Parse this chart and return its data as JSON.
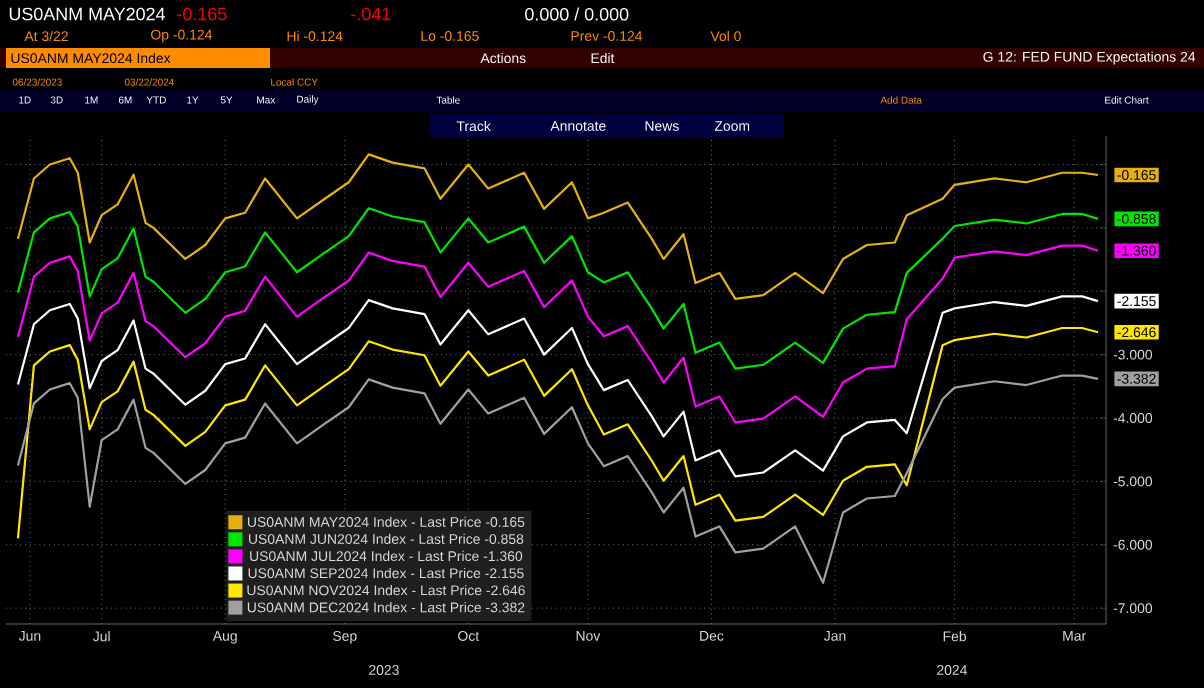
{
  "chart_data": {
    "type": "line",
    "title": "G 12: FED FUND Expectations 24",
    "annotations": [
      "US0ANM MAY2024",
      "-0.165",
      "-.041",
      "0.000 / 0.000",
      "At 3/22",
      "Op -0.124",
      "Hi -0.124",
      "Lo -0.165",
      "Prev -0.124",
      "Vol 0",
      "US0ANM MAY2024 Index",
      "Actions",
      "Edit",
      "06/23/2023",
      "03/22/2024",
      "Local CCY",
      "1D",
      "3D",
      "1M",
      "6M",
      "YTD",
      "1Y",
      "5Y",
      "Max",
      "Daily",
      "Table",
      "Add Data",
      "Edit Chart",
      "Track",
      "Annotate",
      "News",
      "Zoom",
      "2023",
      "2024"
    ],
    "x": [
      "2023-06-25",
      "2023-06-29",
      "2023-07-03",
      "2023-07-08",
      "2023-07-10",
      "2023-07-13",
      "2023-07-16",
      "2023-07-20",
      "2023-07-24",
      "2023-07-27",
      "2023-07-29",
      "2023-08-06",
      "2023-08-11",
      "2023-08-16",
      "2023-08-21",
      "2023-08-26",
      "2023-09-03",
      "2023-09-10",
      "2023-09-16",
      "2023-09-21",
      "2023-09-27",
      "2023-10-05",
      "2023-10-09",
      "2023-10-16",
      "2023-10-21",
      "2023-10-30",
      "2023-11-04",
      "2023-11-11",
      "2023-11-15",
      "2023-11-19",
      "2023-11-25",
      "2023-12-01",
      "2023-12-04",
      "2023-12-09",
      "2023-12-12",
      "2023-12-18",
      "2023-12-22",
      "2023-12-29",
      "2024-01-06",
      "2024-01-13",
      "2024-01-18",
      "2024-01-24",
      "2024-01-31",
      "2024-02-03",
      "2024-02-12",
      "2024-02-15",
      "2024-02-25",
      "2024-03-04",
      "2024-03-13",
      "2024-03-18",
      "2024-03-22"
    ],
    "series": [
      {
        "name": "US0ANM MAY2024 Index - Last Price -0.165",
        "color": "#e6b012",
        "values": [
          -1.17,
          -0.22,
          0,
          0.1,
          -0.13,
          -1.23,
          -0.8,
          -0.63,
          -0.16,
          -0.92,
          -1.0,
          -1.49,
          -1.27,
          -0.85,
          -0.76,
          -0.22,
          -0.85,
          -0.54,
          -0.28,
          0.16,
          0.03,
          -0.06,
          -0.54,
          0,
          -0.38,
          -0.13,
          -0.7,
          -0.28,
          -0.85,
          -0.76,
          -0.6,
          -1.17,
          -1.49,
          -1.1,
          -1.87,
          -1.71,
          -2.12,
          -2.06,
          -1.71,
          -2.03,
          -1.49,
          -1.27,
          -1.23,
          -0.8,
          -0.54,
          -0.32,
          -0.22,
          -0.28,
          -0.13,
          -0.13,
          -0.165
        ],
        "value_labels": [
          null,
          null,
          null,
          null,
          null,
          null,
          null,
          null,
          null,
          null,
          null,
          null,
          null,
          null,
          null,
          null,
          null,
          null,
          null,
          null,
          null,
          null,
          null,
          null,
          null,
          null,
          null,
          null,
          null,
          null,
          null,
          null,
          null,
          null,
          null,
          null,
          null,
          null,
          null,
          null,
          null,
          null,
          null,
          null,
          null,
          null,
          null,
          null,
          null,
          null,
          "-0.165"
        ]
      },
      {
        "name": "US0ANM JUN2024 Index - Last Price -0.858",
        "color": "#00e600",
        "values": [
          -2.02,
          -1.07,
          -0.85,
          -0.75,
          -0.98,
          -2.08,
          -1.65,
          -1.48,
          -1.01,
          -1.77,
          -1.85,
          -2.34,
          -2.12,
          -1.7,
          -1.61,
          -1.07,
          -1.7,
          -1.39,
          -1.13,
          -0.69,
          -0.82,
          -0.91,
          -1.39,
          -0.85,
          -1.23,
          -0.98,
          -1.55,
          -1.13,
          -1.7,
          -1.86,
          -1.7,
          -2.27,
          -2.59,
          -2.2,
          -2.97,
          -2.81,
          -3.22,
          -3.16,
          -2.81,
          -3.13,
          -2.59,
          -2.37,
          -2.33,
          -1.71,
          -1.17,
          -0.97,
          -0.87,
          -0.93,
          -0.78,
          -0.78,
          -0.858
        ],
        "value_labels": [
          null,
          null,
          null,
          null,
          null,
          null,
          null,
          null,
          null,
          null,
          null,
          null,
          null,
          null,
          null,
          null,
          null,
          null,
          null,
          null,
          null,
          null,
          null,
          null,
          null,
          null,
          null,
          null,
          null,
          null,
          null,
          null,
          null,
          null,
          null,
          null,
          null,
          null,
          null,
          null,
          null,
          null,
          null,
          null,
          null,
          null,
          null,
          null,
          null,
          null,
          "-0.858"
        ]
      },
      {
        "name": "US0ANM JUL2024 Index - Last Price -1.360",
        "color": "#ff00ff",
        "values": [
          -2.72,
          -1.77,
          -1.55,
          -1.45,
          -1.68,
          -2.78,
          -2.35,
          -2.18,
          -1.71,
          -2.47,
          -2.55,
          -3.04,
          -2.82,
          -2.4,
          -2.31,
          -1.77,
          -2.4,
          -2.09,
          -1.83,
          -1.39,
          -1.52,
          -1.61,
          -2.09,
          -1.55,
          -1.93,
          -1.68,
          -2.25,
          -1.83,
          -2.4,
          -2.71,
          -2.55,
          -3.12,
          -3.44,
          -3.05,
          -3.82,
          -3.66,
          -4.07,
          -4.01,
          -3.66,
          -3.98,
          -3.44,
          -3.22,
          -3.18,
          -2.44,
          -1.8,
          -1.47,
          -1.37,
          -1.43,
          -1.28,
          -1.28,
          -1.36
        ],
        "value_labels": [
          null,
          null,
          null,
          null,
          null,
          null,
          null,
          null,
          null,
          null,
          null,
          null,
          null,
          null,
          null,
          null,
          null,
          null,
          null,
          null,
          null,
          null,
          null,
          null,
          null,
          null,
          null,
          null,
          null,
          null,
          null,
          null,
          null,
          null,
          null,
          null,
          null,
          null,
          null,
          null,
          null,
          null,
          null,
          null,
          null,
          null,
          null,
          null,
          null,
          null,
          "-1.360"
        ]
      },
      {
        "name": "US0ANM SEP2024 Index - Last Price -2.155",
        "color": "#ffffff",
        "values": [
          -3.47,
          -2.52,
          -2.3,
          -2.2,
          -2.43,
          -3.53,
          -3.1,
          -2.93,
          -2.46,
          -3.22,
          -3.3,
          -3.79,
          -3.57,
          -3.15,
          -3.06,
          -2.52,
          -3.15,
          -2.84,
          -2.58,
          -2.14,
          -2.27,
          -2.36,
          -2.84,
          -2.3,
          -2.68,
          -2.43,
          -3.0,
          -2.58,
          -3.15,
          -3.56,
          -3.4,
          -3.97,
          -4.29,
          -3.9,
          -4.67,
          -4.51,
          -4.92,
          -4.86,
          -4.51,
          -4.83,
          -4.29,
          -4.07,
          -4.03,
          -4.24,
          -2.34,
          -2.27,
          -2.17,
          -2.23,
          -2.08,
          -2.08,
          -2.155
        ],
        "value_labels": [
          null,
          null,
          null,
          null,
          null,
          null,
          null,
          null,
          null,
          null,
          null,
          null,
          null,
          null,
          null,
          null,
          null,
          null,
          null,
          null,
          null,
          null,
          null,
          null,
          null,
          null,
          null,
          null,
          null,
          null,
          null,
          null,
          null,
          null,
          null,
          null,
          null,
          null,
          null,
          null,
          null,
          null,
          null,
          null,
          null,
          null,
          null,
          null,
          null,
          null,
          "-2.155"
        ]
      },
      {
        "name": "US0ANM NOV2024 Index - Last Price -2.646",
        "color": "#ffe600",
        "values": [
          -5.9,
          -3.17,
          -2.95,
          -2.85,
          -3.08,
          -4.18,
          -3.75,
          -3.58,
          -3.11,
          -3.87,
          -3.95,
          -4.44,
          -4.22,
          -3.8,
          -3.71,
          -3.17,
          -3.8,
          -3.49,
          -3.23,
          -2.79,
          -2.92,
          -3.01,
          -3.49,
          -2.95,
          -3.33,
          -3.08,
          -3.65,
          -3.23,
          -3.8,
          -4.26,
          -4.1,
          -4.67,
          -4.99,
          -4.6,
          -5.37,
          -5.21,
          -5.62,
          -5.56,
          -5.21,
          -5.53,
          -4.99,
          -4.77,
          -4.73,
          -5.06,
          -2.85,
          -2.77,
          -2.67,
          -2.73,
          -2.58,
          -2.58,
          -2.646
        ],
        "value_labels": [
          null,
          null,
          null,
          null,
          null,
          null,
          null,
          null,
          null,
          null,
          null,
          null,
          null,
          null,
          null,
          null,
          null,
          null,
          null,
          null,
          null,
          null,
          null,
          null,
          null,
          null,
          null,
          null,
          null,
          null,
          null,
          null,
          null,
          null,
          null,
          null,
          null,
          null,
          null,
          null,
          null,
          null,
          null,
          null,
          null,
          null,
          null,
          null,
          null,
          null,
          "-2.646"
        ]
      },
      {
        "name": "US0ANM DEC2024 Index - Last Price -3.382",
        "color": "#a0a0a0",
        "values": [
          -4.75,
          -3.77,
          -3.55,
          -3.45,
          -3.68,
          -5.4,
          -4.35,
          -4.18,
          -3.71,
          -4.47,
          -4.55,
          -5.04,
          -4.82,
          -4.4,
          -4.31,
          -3.77,
          -4.4,
          -4.09,
          -3.83,
          -3.39,
          -3.52,
          -3.61,
          -4.09,
          -3.55,
          -3.93,
          -3.68,
          -4.25,
          -3.83,
          -4.4,
          -4.76,
          -4.6,
          -5.17,
          -5.49,
          -5.1,
          -5.87,
          -5.71,
          -6.12,
          -6.06,
          -5.71,
          -6.6,
          -5.49,
          -5.27,
          -5.23,
          -4.87,
          -3.7,
          -3.52,
          -3.42,
          -3.48,
          -3.33,
          -3.33,
          -3.382
        ],
        "value_labels": [
          null,
          null,
          null,
          null,
          null,
          null,
          null,
          null,
          null,
          null,
          null,
          null,
          null,
          null,
          null,
          null,
          null,
          null,
          null,
          null,
          null,
          null,
          null,
          null,
          null,
          null,
          null,
          null,
          null,
          null,
          null,
          null,
          null,
          null,
          null,
          null,
          null,
          null,
          null,
          null,
          null,
          null,
          null,
          null,
          null,
          null,
          null,
          null,
          null,
          null,
          "-3.382"
        ]
      }
    ],
    "xlim": [
      "2023-06-22",
      "2024-03-24"
    ],
    "xticks": [
      {
        "value": "2023-06-28",
        "label": "Jun"
      },
      {
        "value": "2023-07-16",
        "label": "Jul"
      },
      {
        "value": "2023-08-16",
        "label": "Aug"
      },
      {
        "value": "2023-09-15",
        "label": "Sep"
      },
      {
        "value": "2023-10-16",
        "label": "Oct"
      },
      {
        "value": "2023-11-15",
        "label": "Nov"
      },
      {
        "value": "2023-12-16",
        "label": "Dec"
      },
      {
        "value": "2024-01-16",
        "label": "Jan"
      },
      {
        "value": "2024-02-15",
        "label": "Feb"
      },
      {
        "value": "2024-03-16",
        "label": "Mar"
      }
    ],
    "ylim": [
      -7.25,
      0.45
    ],
    "yticks": [
      {
        "value": 0,
        "label": null
      },
      {
        "value": -1,
        "label": null
      },
      {
        "value": -2,
        "label": null
      },
      {
        "value": -3,
        "label": "-3.000"
      },
      {
        "value": -4,
        "label": "-4.000"
      },
      {
        "value": -5,
        "label": "-5.000"
      },
      {
        "value": -6,
        "label": "-6.000"
      },
      {
        "value": -7,
        "label": "-7.000"
      }
    ],
    "grid": true,
    "legend": "bottom",
    "line_style": "solid",
    "marker": "none"
  }
}
